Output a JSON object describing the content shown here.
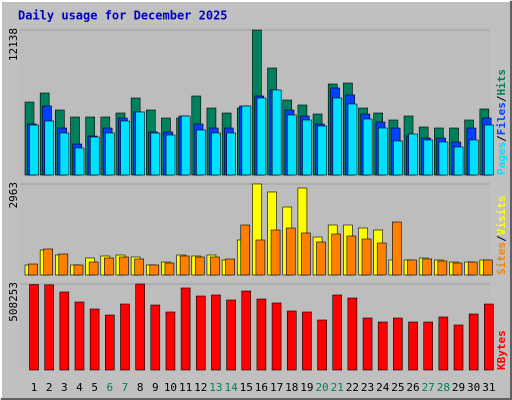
{
  "title": "Daily usage for December 2025",
  "legend_separator": "/",
  "chart_data": [
    {
      "type": "bar",
      "ylim": [
        0,
        12138
      ],
      "yticks": [
        12138
      ],
      "series": [
        {
          "name": "Hits",
          "color": "#00805c",
          "values": [
            6110,
            6864,
            5441,
            4855,
            4855,
            4855,
            5190,
            6446,
            5441,
            4771,
            4771,
            6613,
            5608,
            5190,
            5608,
            12138,
            8957,
            6278,
            5860,
            5106,
            7618,
            7701,
            5608,
            5190,
            4604,
            4939,
            4018,
            3934,
            3934,
            4604,
            5525
          ]
        },
        {
          "name": "Files",
          "color": "#0040ff",
          "values": [
            4269,
            5776,
            3934,
            2595,
            3265,
            3934,
            4771,
            5274,
            3600,
            3600,
            4939,
            4269,
            3934,
            3934,
            5776,
            6613,
            7115,
            5441,
            4939,
            4269,
            7283,
            6697,
            5106,
            4437,
            3934,
            3265,
            3097,
            3097,
            2762,
            3934,
            4771
          ]
        },
        {
          "name": "Pages",
          "color": "#00e0ff",
          "values": [
            4185,
            4520,
            3516,
            2260,
            3181,
            3516,
            4520,
            5274,
            3516,
            3348,
            4939,
            3767,
            3516,
            3516,
            5776,
            6446,
            7115,
            5022,
            4604,
            4102,
            6446,
            5943,
            4688,
            3934,
            2846,
            3432,
            2930,
            2762,
            2344,
            2930,
            4185
          ]
        }
      ]
    },
    {
      "type": "bar",
      "ylim": [
        0,
        2963
      ],
      "yticks": [
        2963
      ],
      "series": [
        {
          "name": "Visits",
          "color": "#ffff00",
          "values": [
            326,
            814,
            651,
            326,
            554,
            619,
            651,
            586,
            326,
            423,
            651,
            619,
            651,
            489,
            1140,
            2963,
            2703,
            2214,
            2833,
            1237,
            1628,
            1628,
            1530,
            1465,
            489,
            489,
            554,
            489,
            423,
            423,
            489
          ]
        },
        {
          "name": "Sites",
          "color": "#ff8000",
          "values": [
            358,
            847,
            684,
            326,
            423,
            554,
            586,
            521,
            326,
            391,
            619,
            586,
            586,
            521,
            1628,
            1140,
            1465,
            1530,
            1368,
            1075,
            1335,
            1270,
            1173,
            1042,
            1726,
            489,
            521,
            456,
            391,
            423,
            489
          ]
        }
      ]
    },
    {
      "type": "bar",
      "ylim": [
        0,
        508253
      ],
      "yticks": [
        508253
      ],
      "categories": [
        "1",
        "2",
        "3",
        "4",
        "5",
        "6",
        "7",
        "8",
        "9",
        "10",
        "11",
        "12",
        "13",
        "14",
        "15",
        "16",
        "17",
        "18",
        "19",
        "20",
        "21",
        "22",
        "23",
        "24",
        "25",
        "26",
        "27",
        "28",
        "29",
        "30",
        "31"
      ],
      "category_colors": [
        "#000000",
        "#000000",
        "#000000",
        "#000000",
        "#000000",
        "#00805c",
        "#00805c",
        "#000000",
        "#000000",
        "#000000",
        "#000000",
        "#000000",
        "#00805c",
        "#00805c",
        "#000000",
        "#000000",
        "#000000",
        "#000000",
        "#000000",
        "#00805c",
        "#00805c",
        "#000000",
        "#000000",
        "#000000",
        "#000000",
        "#000000",
        "#00805c",
        "#00805c",
        "#000000",
        "#000000",
        "#000000"
      ],
      "series": [
        {
          "name": "KBytes",
          "color": "#ff0000",
          "values": [
            505000,
            503000,
            461000,
            401900,
            360500,
            325000,
            390000,
            508253,
            384000,
            342800,
            484600,
            437300,
            443300,
            413700,
            466900,
            419600,
            396000,
            348700,
            342800,
            295500,
            443300,
            425500,
            307300,
            283700,
            307300,
            283700,
            283700,
            313200,
            266000,
            331000,
            390000
          ]
        }
      ]
    }
  ]
}
